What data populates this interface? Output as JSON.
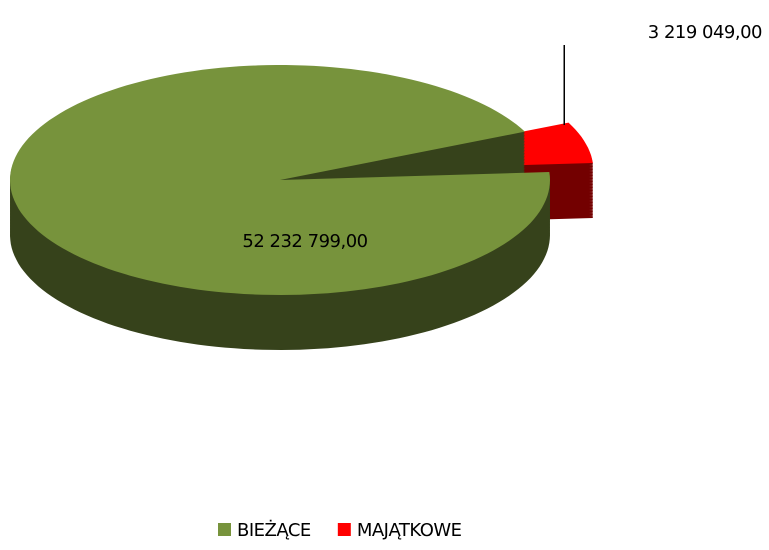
{
  "chart_data": {
    "type": "pie",
    "categories": [
      "BIEŻĄCE",
      "MAJĄTKOWE"
    ],
    "values": [
      52232799,
      3219049
    ],
    "value_labels": [
      "52 232 799,00",
      "3 219 049,00"
    ],
    "colors": [
      "#77933c",
      "#ff0000"
    ],
    "legend": "bottom"
  }
}
